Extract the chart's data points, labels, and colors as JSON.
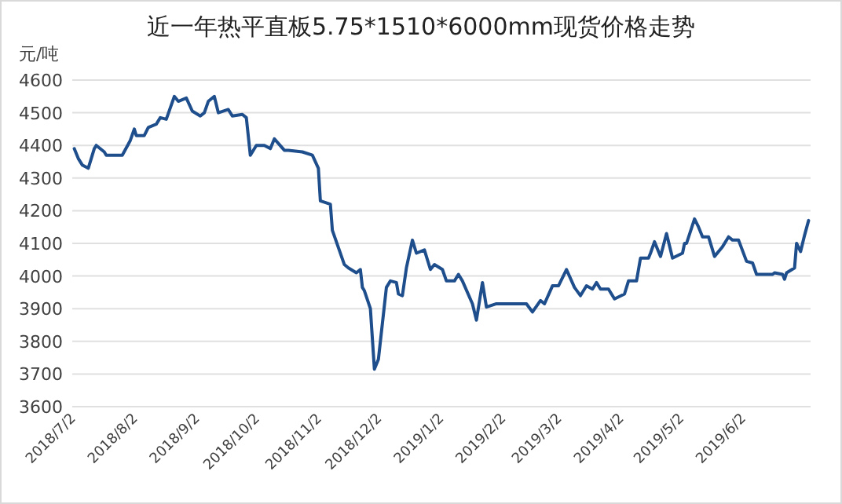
{
  "chart_data": {
    "type": "line",
    "title": "近一年热平直板5.75*1510*6000mm现货价格走势",
    "ylabel": "元/吨",
    "color": "#1f4e8c",
    "line_style": "solid",
    "grid": "y",
    "xlim": [
      "2018-06-30",
      "2019-07-04"
    ],
    "ylim": [
      3600,
      4600
    ],
    "yticks": [
      3600,
      3700,
      3800,
      3900,
      4000,
      4100,
      4200,
      4300,
      4400,
      4500,
      4600
    ],
    "xticks": [
      {
        "value": "2018-07-02",
        "label": "2018/7/2"
      },
      {
        "value": "2018-08-02",
        "label": "2018/8/2"
      },
      {
        "value": "2018-09-02",
        "label": "2018/9/2"
      },
      {
        "value": "2018-10-02",
        "label": "2018/10/2"
      },
      {
        "value": "2018-11-02",
        "label": "2018/11/2"
      },
      {
        "value": "2018-12-02",
        "label": "2018/12/2"
      },
      {
        "value": "2019-01-02",
        "label": "2019/1/2"
      },
      {
        "value": "2019-02-02",
        "label": "2019/2/2"
      },
      {
        "value": "2019-03-02",
        "label": "2019/3/2"
      },
      {
        "value": "2019-04-02",
        "label": "2019/4/2"
      },
      {
        "value": "2019-05-02",
        "label": "2019/5/2"
      },
      {
        "value": "2019-06-02",
        "label": "2019/6/2"
      }
    ],
    "x": [
      "2018-07-01",
      "2018-07-03",
      "2018-07-05",
      "2018-07-08",
      "2018-07-11",
      "2018-07-12",
      "2018-07-16",
      "2018-07-17",
      "2018-07-25",
      "2018-07-29",
      "2018-07-31",
      "2018-08-01",
      "2018-08-05",
      "2018-08-07",
      "2018-08-11",
      "2018-08-13",
      "2018-08-16",
      "2018-08-20",
      "2018-08-22",
      "2018-08-26",
      "2018-08-29",
      "2018-09-02",
      "2018-09-04",
      "2018-09-06",
      "2018-09-09",
      "2018-09-11",
      "2018-09-16",
      "2018-09-18",
      "2018-09-23",
      "2018-09-25",
      "2018-09-27",
      "2018-09-30",
      "2018-10-04",
      "2018-10-07",
      "2018-10-09",
      "2018-10-14",
      "2018-10-16",
      "2018-10-23",
      "2018-10-28",
      "2018-10-31",
      "2018-11-01",
      "2018-11-06",
      "2018-11-07",
      "2018-11-13",
      "2018-11-15",
      "2018-11-19",
      "2018-11-21",
      "2018-11-22",
      "2018-11-23",
      "2018-11-26",
      "2018-11-28",
      "2018-11-30",
      "2018-12-04",
      "2018-12-06",
      "2018-12-09",
      "2018-12-10",
      "2018-12-12",
      "2018-12-14",
      "2018-12-17",
      "2018-12-19",
      "2018-12-23",
      "2018-12-26",
      "2018-12-28",
      "2019-01-01",
      "2019-01-03",
      "2019-01-07",
      "2019-01-09",
      "2019-01-11",
      "2019-01-16",
      "2019-01-18",
      "2019-01-21",
      "2019-01-23",
      "2019-01-28",
      "2019-02-12",
      "2019-02-15",
      "2019-02-19",
      "2019-02-21",
      "2019-02-25",
      "2019-02-28",
      "2019-03-04",
      "2019-03-08",
      "2019-03-11",
      "2019-03-14",
      "2019-03-17",
      "2019-03-19",
      "2019-03-21",
      "2019-03-25",
      "2019-03-28",
      "2019-04-02",
      "2019-04-04",
      "2019-04-08",
      "2019-04-10",
      "2019-04-14",
      "2019-04-15",
      "2019-04-17",
      "2019-04-20",
      "2019-04-23",
      "2019-04-26",
      "2019-05-01",
      "2019-05-02",
      "2019-05-03",
      "2019-05-07",
      "2019-05-09",
      "2019-05-11",
      "2019-05-14",
      "2019-05-17",
      "2019-05-21",
      "2019-05-24",
      "2019-05-26",
      "2019-05-29",
      "2019-06-02",
      "2019-06-05",
      "2019-06-07",
      "2019-06-15",
      "2019-06-16",
      "2019-06-20",
      "2019-06-21",
      "2019-06-22",
      "2019-06-26",
      "2019-06-27",
      "2019-06-29",
      "2019-07-01",
      "2019-07-03"
    ],
    "values": [
      4390,
      4360,
      4340,
      4330,
      4390,
      4400,
      4380,
      4370,
      4370,
      4415,
      4450,
      4430,
      4430,
      4455,
      4465,
      4485,
      4480,
      4550,
      4535,
      4545,
      4505,
      4490,
      4500,
      4535,
      4550,
      4500,
      4510,
      4490,
      4495,
      4485,
      4370,
      4400,
      4400,
      4390,
      4420,
      4385,
      4385,
      4380,
      4370,
      4330,
      4230,
      4220,
      4140,
      4035,
      4025,
      4010,
      4020,
      3965,
      3955,
      3900,
      3715,
      3745,
      3965,
      3985,
      3980,
      3945,
      3940,
      4025,
      4110,
      4070,
      4080,
      4020,
      4035,
      4020,
      3985,
      3985,
      4005,
      3985,
      3915,
      3865,
      3980,
      3905,
      3915,
      3915,
      3890,
      3925,
      3915,
      3970,
      3970,
      4020,
      3965,
      3940,
      3970,
      3960,
      3980,
      3960,
      3960,
      3930,
      3945,
      3985,
      3985,
      4055,
      4055,
      4070,
      4105,
      4060,
      4130,
      4055,
      4070,
      4100,
      4100,
      4175,
      4150,
      4120,
      4120,
      4060,
      4090,
      4120,
      4110,
      4110,
      4045,
      4040,
      4005,
      4005,
      4010,
      4005,
      3990,
      4010,
      4025,
      4100,
      4075,
      4125,
      4170
    ]
  }
}
